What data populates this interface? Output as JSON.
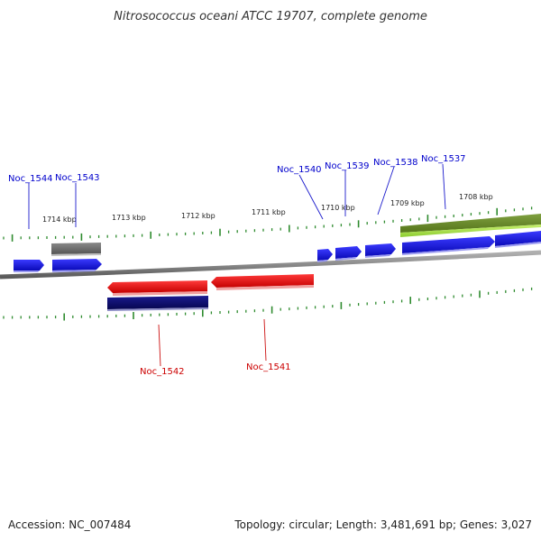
{
  "title": "Nitrosococcus oceani ATCC 19707, complete genome",
  "footer": {
    "accession": "Accession: NC_007484",
    "topology": "Topology: circular; Length: 3,481,691 bp; Genes: 3,027"
  },
  "colors": {
    "backbone": "#888888",
    "tick": "#2e8b2e",
    "plus_label": "#0000cc",
    "minus_label": "#cc0000",
    "gene_blue": "#1515e6",
    "gene_red": "#ee1111",
    "gene_navy": "#0c0c70",
    "gene_gray": "#707070",
    "gene_olive": "#6b8e23",
    "gene_lime": "#a8e04a"
  },
  "kbp_labels": [
    "1714 kbp",
    "1713 kbp",
    "1712 kbp",
    "1711 kbp",
    "1710 kbp",
    "1709 kbp",
    "1708 kbp"
  ],
  "genes_plus": [
    {
      "label": "Noc_1544",
      "color": "gene_blue",
      "shape": "arrow-right"
    },
    {
      "label": "Noc_1543",
      "color": "gene_blue",
      "shape": "arrow-right"
    },
    {
      "label": "Noc_1540",
      "color": "gene_blue",
      "shape": "arrow-right"
    },
    {
      "label": "Noc_1539",
      "color": "gene_blue",
      "shape": "arrow-right"
    },
    {
      "label": "Noc_1538",
      "color": "gene_blue",
      "shape": "arrow-right"
    },
    {
      "label": "Noc_1537",
      "color": "gene_blue",
      "shape": "arrow-right"
    }
  ],
  "genes_minus": [
    {
      "label": "Noc_1542",
      "color": "gene_red",
      "shape": "arrow-left"
    },
    {
      "label": "Noc_1541",
      "color": "gene_red",
      "shape": "arrow-left"
    }
  ]
}
